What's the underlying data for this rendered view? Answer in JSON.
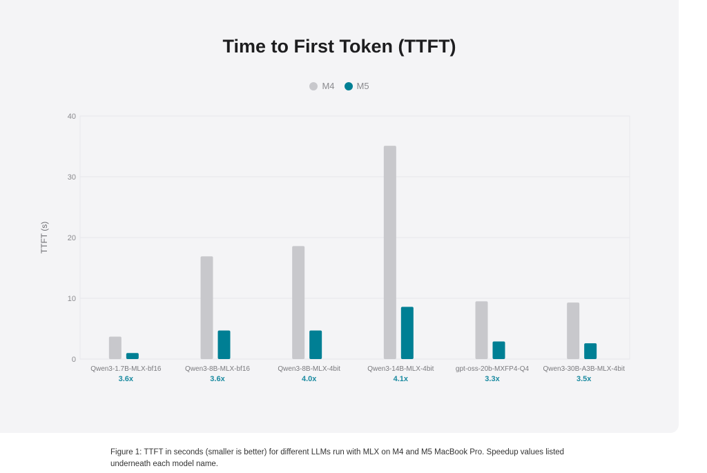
{
  "chart_data": {
    "type": "bar",
    "title": "Time to First Token (TTFT)",
    "xlabel": "",
    "ylabel": "TTFT (s)",
    "ylim": [
      0,
      40
    ],
    "yticks": [
      0,
      10,
      20,
      30,
      40
    ],
    "grid": true,
    "legend_placement": "top-center",
    "categories": [
      "Qwen3-1.7B-MLX-bf16",
      "Qwen3-8B-MLX-bf16",
      "Qwen3-8B-MLX-4bit",
      "Qwen3-14B-MLX-4bit",
      "gpt-oss-20b-MXFP4-Q4",
      "Qwen3-30B-A3B-MLX-4bit"
    ],
    "speedups": [
      "3.6x",
      "3.6x",
      "4.0x",
      "4.1x",
      "3.3x",
      "3.5x"
    ],
    "series": [
      {
        "name": "M4",
        "color": "#c8c8cc",
        "values": [
          3.7,
          16.9,
          18.6,
          35.1,
          9.5,
          9.3
        ]
      },
      {
        "name": "M5",
        "color": "#007f94",
        "values": [
          1.0,
          4.7,
          4.7,
          8.6,
          2.9,
          2.6
        ]
      }
    ]
  },
  "caption": "Figure 1: TTFT in seconds (smaller is better) for different LLMs run with MLX on M4 and M5 MacBook Pro. Speedup values listed underneath each model name."
}
